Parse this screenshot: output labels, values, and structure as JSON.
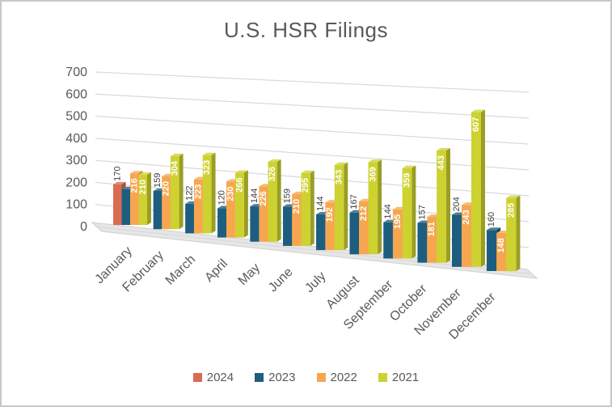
{
  "window": {
    "background": "#ffffff",
    "border_color": "#c8c8c8"
  },
  "chart_data": {
    "type": "bar",
    "subtype": "3d-clustered-column",
    "title": "U.S. HSR Filings",
    "xlabel": "",
    "ylabel": "",
    "categories": [
      "January",
      "February",
      "March",
      "April",
      "May",
      "June",
      "July",
      "August",
      "September",
      "October",
      "November",
      "December"
    ],
    "series": [
      {
        "name": "2024",
        "color": "#d96c53",
        "label_style": "outside-black",
        "values": [
          170,
          null,
          null,
          null,
          null,
          null,
          null,
          null,
          null,
          null,
          null,
          null
        ]
      },
      {
        "name": "2023",
        "color": "#1d5e80",
        "label_style": "outside-black",
        "label_hidden_indexes": [
          0
        ],
        "values": [
          150,
          159,
          122,
          120,
          144,
          159,
          144,
          167,
          144,
          157,
          204,
          160
        ]
      },
      {
        "name": "2022",
        "color": "#f7a64f",
        "label_style": "inside-white",
        "values": [
          216,
          220,
          223,
          230,
          226,
          210,
          192,
          212,
          195,
          181,
          243,
          148
        ]
      },
      {
        "name": "2021",
        "color": "#cdd231",
        "label_style": "inside-white",
        "values": [
          210,
          304,
          323,
          266,
          326,
          295,
          343,
          369,
          359,
          443,
          607,
          285
        ]
      }
    ],
    "y_axis": {
      "min": 0,
      "max": 700,
      "ticks": [
        0,
        100,
        200,
        300,
        400,
        500,
        600,
        700
      ]
    },
    "grid": true,
    "gridline_color": "#d9d9d9",
    "floor_color": "#e6e6e6",
    "axis_text_color": "#595959",
    "value_label_color": "#3f3f3f",
    "legend": {
      "position": "bottom",
      "entries": [
        "2024",
        "2023",
        "2022",
        "2021"
      ]
    }
  }
}
